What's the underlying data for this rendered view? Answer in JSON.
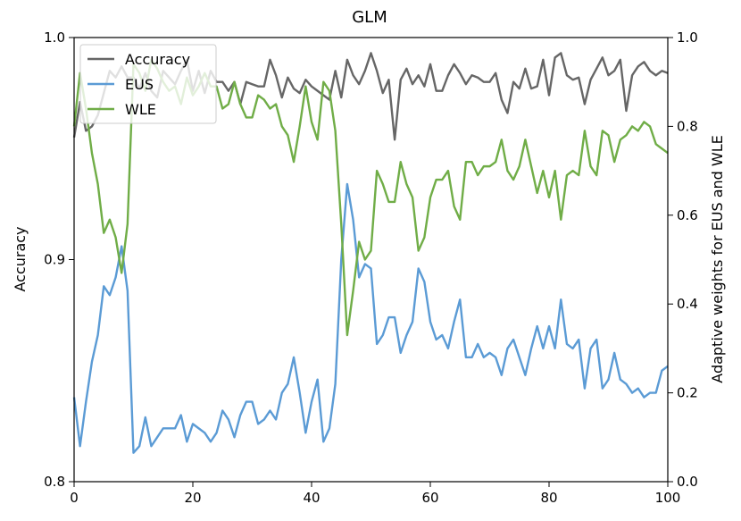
{
  "chart_data": {
    "type": "line",
    "title": "GLM",
    "xlabel": "",
    "ylabel_left": "Accuracy",
    "ylabel_right": "Adaptive weights for EUS and WLE",
    "xlim": [
      0,
      100
    ],
    "ylim_left": [
      0.8,
      1.0
    ],
    "ylim_right": [
      0.0,
      1.0
    ],
    "x_ticks": [
      "0",
      "20",
      "40",
      "60",
      "80",
      "100"
    ],
    "y_left_ticks": [
      "0.8",
      "0.9",
      "1.0"
    ],
    "y_right_ticks": [
      "0.0",
      "0.2",
      "0.4",
      "0.6",
      "0.8",
      "1.0"
    ],
    "grid": false,
    "legend_position": "top-left",
    "series": [
      {
        "name": "Accuracy",
        "axis": "left",
        "color": "#666666",
        "x": [
          0,
          1,
          2,
          3,
          4,
          5,
          6,
          7,
          8,
          9,
          10,
          11,
          12,
          13,
          14,
          15,
          16,
          17,
          18,
          19,
          20,
          21,
          22,
          23,
          24,
          25,
          26,
          27,
          28,
          29,
          30,
          31,
          32,
          33,
          34,
          35,
          36,
          37,
          38,
          39,
          40,
          41,
          42,
          43,
          44,
          45,
          46,
          47,
          48,
          49,
          50,
          51,
          52,
          53,
          54,
          55,
          56,
          57,
          58,
          59,
          60,
          61,
          62,
          63,
          64,
          65,
          66,
          67,
          68,
          69,
          70,
          71,
          72,
          73,
          74,
          75,
          76,
          77,
          78,
          79,
          80,
          81,
          82,
          83,
          84,
          85,
          86,
          87,
          88,
          89,
          90,
          91,
          92,
          93,
          94,
          95,
          96,
          97,
          98,
          99,
          100
        ],
        "values": [
          0.955,
          0.971,
          0.958,
          0.96,
          0.965,
          0.975,
          0.985,
          0.982,
          0.987,
          0.982,
          0.982,
          0.977,
          0.984,
          0.976,
          0.973,
          0.985,
          0.982,
          0.979,
          0.985,
          0.99,
          0.976,
          0.985,
          0.975,
          0.985,
          0.98,
          0.98,
          0.976,
          0.98,
          0.97,
          0.98,
          0.979,
          0.978,
          0.978,
          0.99,
          0.983,
          0.973,
          0.982,
          0.977,
          0.975,
          0.981,
          0.978,
          0.976,
          0.974,
          0.972,
          0.985,
          0.973,
          0.99,
          0.983,
          0.979,
          0.985,
          0.993,
          0.985,
          0.975,
          0.981,
          0.954,
          0.981,
          0.986,
          0.979,
          0.983,
          0.978,
          0.988,
          0.976,
          0.976,
          0.983,
          0.988,
          0.984,
          0.979,
          0.983,
          0.982,
          0.98,
          0.98,
          0.984,
          0.972,
          0.966,
          0.98,
          0.977,
          0.986,
          0.977,
          0.978,
          0.99,
          0.974,
          0.991,
          0.993,
          0.983,
          0.981,
          0.982,
          0.97,
          0.981,
          0.986,
          0.991,
          0.983,
          0.985,
          0.99,
          0.967,
          0.983,
          0.987,
          0.989,
          0.985,
          0.983,
          0.985,
          0.984
        ]
      },
      {
        "name": "EUS",
        "axis": "right",
        "color": "#5b9bd5",
        "x": [
          0,
          1,
          2,
          3,
          4,
          5,
          6,
          7,
          8,
          9,
          10,
          11,
          12,
          13,
          14,
          15,
          16,
          17,
          18,
          19,
          20,
          21,
          22,
          23,
          24,
          25,
          26,
          27,
          28,
          29,
          30,
          31,
          32,
          33,
          34,
          35,
          36,
          37,
          38,
          39,
          40,
          41,
          42,
          43,
          44,
          45,
          46,
          47,
          48,
          49,
          50,
          51,
          52,
          53,
          54,
          55,
          56,
          57,
          58,
          59,
          60,
          61,
          62,
          63,
          64,
          65,
          66,
          67,
          68,
          69,
          70,
          71,
          72,
          73,
          74,
          75,
          76,
          77,
          78,
          79,
          80,
          81,
          82,
          83,
          84,
          85,
          86,
          87,
          88,
          89,
          90,
          91,
          92,
          93,
          94,
          95,
          96,
          97,
          98,
          99,
          100
        ],
        "values": [
          0.19,
          0.08,
          0.18,
          0.27,
          0.33,
          0.44,
          0.42,
          0.46,
          0.53,
          0.43,
          0.065,
          0.08,
          0.145,
          0.08,
          0.1,
          0.12,
          0.12,
          0.12,
          0.15,
          0.09,
          0.13,
          0.12,
          0.11,
          0.09,
          0.11,
          0.16,
          0.14,
          0.1,
          0.15,
          0.18,
          0.18,
          0.13,
          0.14,
          0.16,
          0.14,
          0.2,
          0.22,
          0.28,
          0.2,
          0.11,
          0.18,
          0.23,
          0.09,
          0.12,
          0.22,
          0.5,
          0.67,
          0.59,
          0.46,
          0.49,
          0.48,
          0.31,
          0.33,
          0.37,
          0.37,
          0.29,
          0.33,
          0.36,
          0.48,
          0.45,
          0.36,
          0.32,
          0.33,
          0.3,
          0.36,
          0.41,
          0.28,
          0.28,
          0.31,
          0.28,
          0.29,
          0.28,
          0.24,
          0.3,
          0.32,
          0.28,
          0.24,
          0.3,
          0.35,
          0.3,
          0.35,
          0.3,
          0.41,
          0.31,
          0.3,
          0.32,
          0.21,
          0.3,
          0.32,
          0.21,
          0.23,
          0.29,
          0.23,
          0.22,
          0.2,
          0.21,
          0.19,
          0.2,
          0.2,
          0.25,
          0.26
        ]
      },
      {
        "name": "WLE",
        "axis": "right",
        "color": "#70ad47",
        "x": [
          0,
          1,
          2,
          3,
          4,
          5,
          6,
          7,
          8,
          9,
          10,
          11,
          12,
          13,
          14,
          15,
          16,
          17,
          18,
          19,
          20,
          21,
          22,
          23,
          24,
          25,
          26,
          27,
          28,
          29,
          30,
          31,
          32,
          33,
          34,
          35,
          36,
          37,
          38,
          39,
          40,
          41,
          42,
          43,
          44,
          45,
          46,
          47,
          48,
          49,
          50,
          51,
          52,
          53,
          54,
          55,
          56,
          57,
          58,
          59,
          60,
          61,
          62,
          63,
          64,
          65,
          66,
          67,
          68,
          69,
          70,
          71,
          72,
          73,
          74,
          75,
          76,
          77,
          78,
          79,
          80,
          81,
          82,
          83,
          84,
          85,
          86,
          87,
          88,
          89,
          90,
          91,
          92,
          93,
          94,
          95,
          96,
          97,
          98,
          99,
          100
        ],
        "values": [
          0.8,
          0.92,
          0.84,
          0.74,
          0.67,
          0.56,
          0.59,
          0.55,
          0.47,
          0.58,
          0.94,
          0.92,
          0.88,
          0.95,
          0.93,
          0.9,
          0.88,
          0.89,
          0.85,
          0.91,
          0.87,
          0.89,
          0.92,
          0.89,
          0.89,
          0.84,
          0.85,
          0.9,
          0.85,
          0.82,
          0.82,
          0.87,
          0.86,
          0.84,
          0.85,
          0.8,
          0.78,
          0.72,
          0.8,
          0.89,
          0.81,
          0.77,
          0.9,
          0.88,
          0.79,
          0.58,
          0.33,
          0.43,
          0.54,
          0.5,
          0.52,
          0.7,
          0.67,
          0.63,
          0.63,
          0.72,
          0.67,
          0.64,
          0.52,
          0.55,
          0.64,
          0.68,
          0.68,
          0.7,
          0.62,
          0.59,
          0.72,
          0.72,
          0.69,
          0.71,
          0.71,
          0.72,
          0.77,
          0.7,
          0.68,
          0.71,
          0.77,
          0.71,
          0.65,
          0.7,
          0.64,
          0.7,
          0.59,
          0.69,
          0.7,
          0.69,
          0.79,
          0.71,
          0.69,
          0.79,
          0.78,
          0.72,
          0.77,
          0.78,
          0.8,
          0.79,
          0.81,
          0.8,
          0.76,
          0.75,
          0.74
        ]
      }
    ]
  }
}
